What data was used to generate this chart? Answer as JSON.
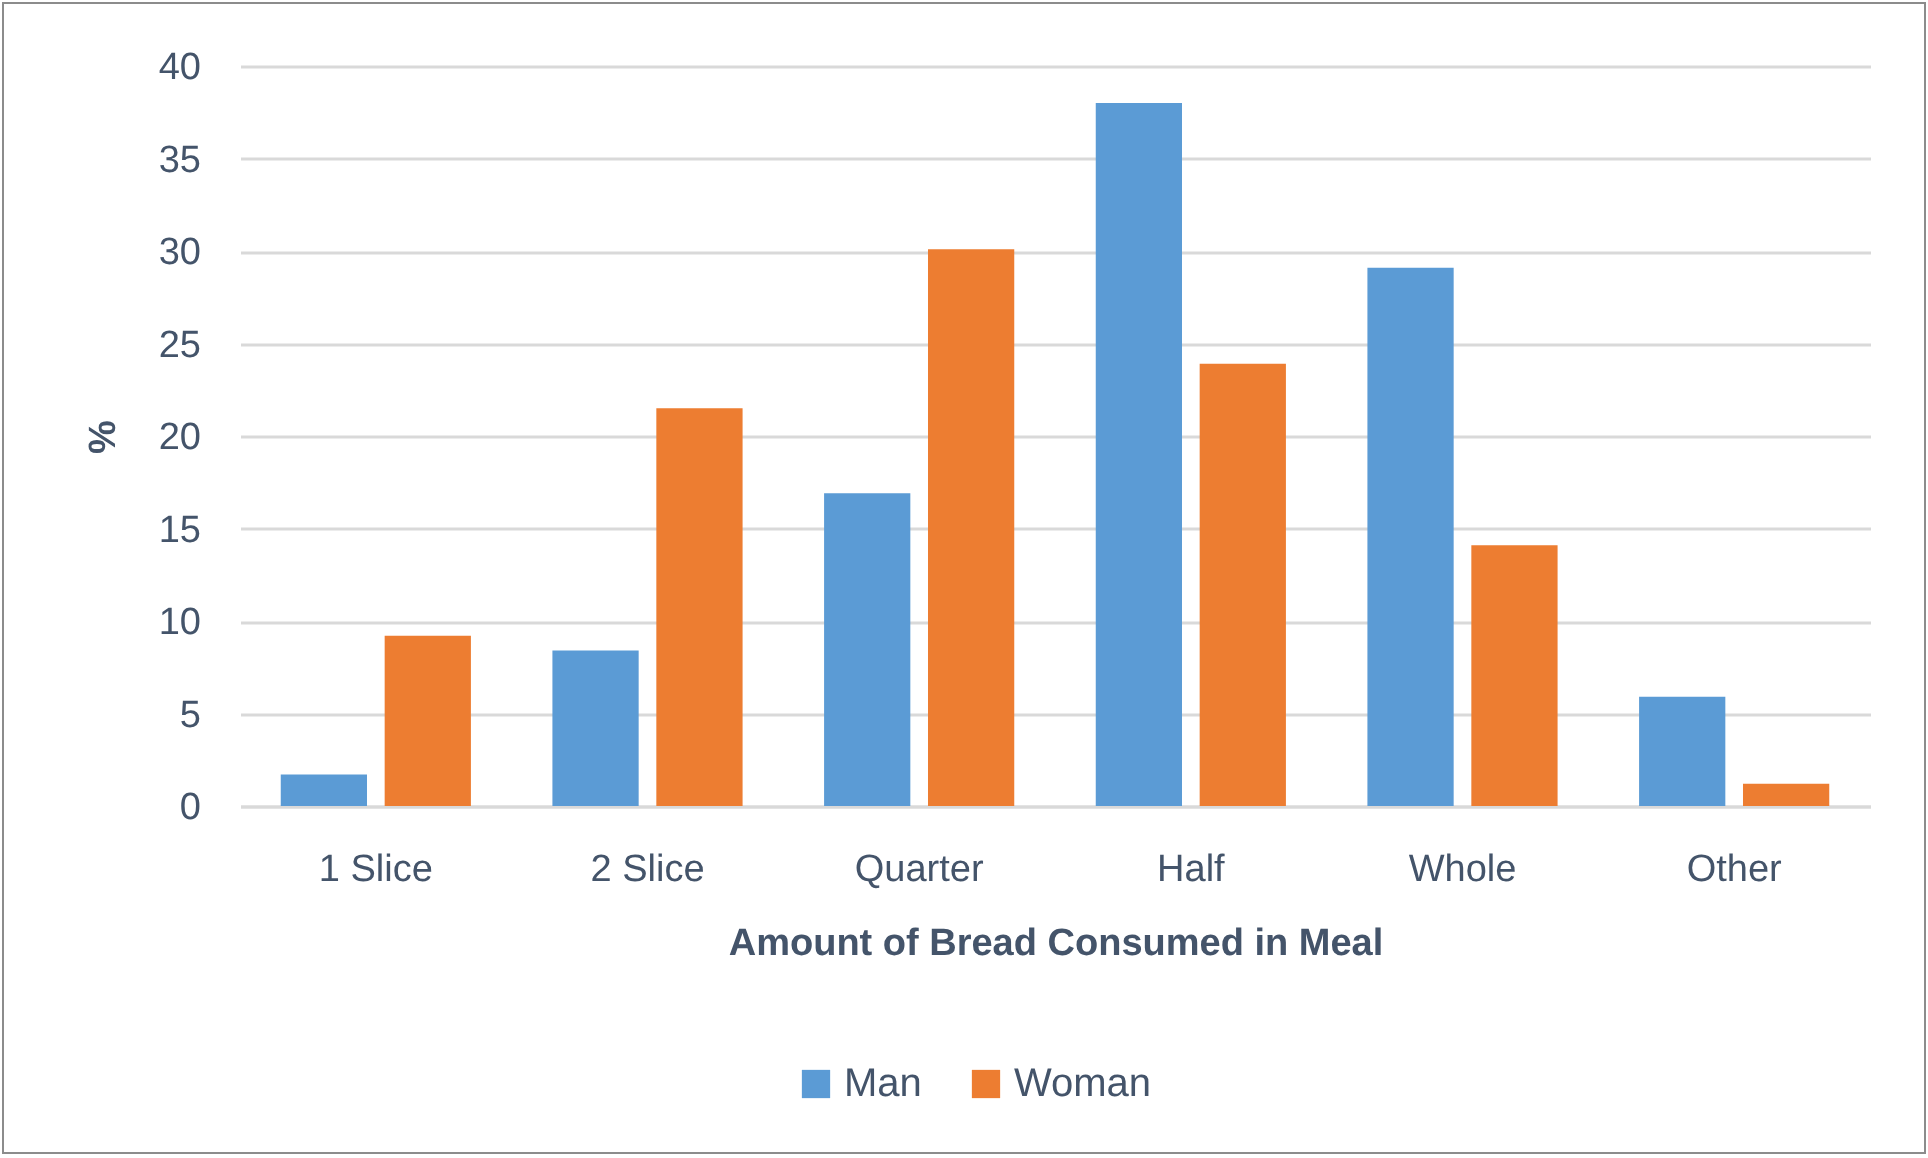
{
  "chart_data": {
    "type": "bar",
    "xlabel": "Amount of Bread Consumed in Meal",
    "ylabel": "%",
    "categories": [
      "1 Slice",
      "2 Slice",
      "Quarter",
      "Half",
      "Whole",
      "Other"
    ],
    "series": [
      {
        "name": "Man",
        "color": "#5b9bd5",
        "values": [
          1.7,
          8.4,
          16.9,
          38.0,
          29.1,
          5.9
        ]
      },
      {
        "name": "Woman",
        "color": "#ed7d31",
        "values": [
          9.2,
          21.5,
          30.1,
          23.9,
          14.1,
          1.2
        ]
      }
    ],
    "ylim": [
      0,
      40
    ],
    "yticks": [
      0,
      5,
      10,
      15,
      20,
      25,
      30,
      35,
      40
    ],
    "grid": "y",
    "legend": "bottom"
  }
}
